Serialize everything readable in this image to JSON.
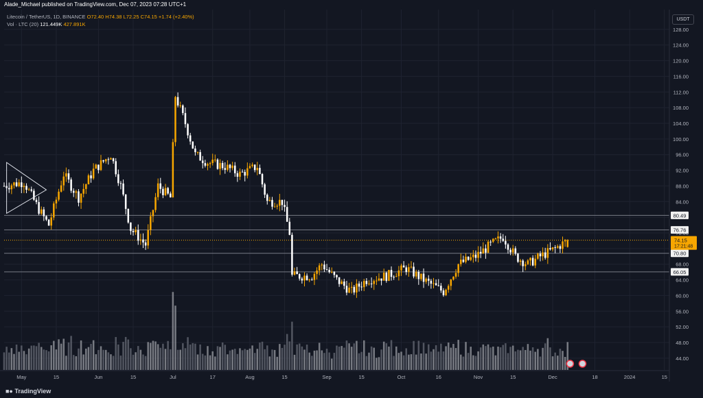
{
  "header": {
    "publish_line": "Alade_Michael published on TradingView.com, Dec 07, 2023 07:28 UTC+1",
    "symbol_line": "Litecoin / TetherUS, 1D, BINANCE",
    "o_label": "O72.40",
    "h_label": "H74.38",
    "l_label": "L72.25",
    "c_label": "C74.15",
    "change_label": "+1.74 (+2.40%)",
    "vol_label": "Vol · LTC (20)",
    "vol_val_1": "121.449K",
    "vol_val_2": "427.891K"
  },
  "currency_button": "USDT",
  "footer": {
    "logo_text": "TradingView"
  },
  "colors": {
    "background": "#131722",
    "up": "#f7a600",
    "down": "#ffffff",
    "grid": "#1f2330",
    "axis_text": "#b2b5be",
    "line": "#787b86",
    "price_badge": "#f7a600"
  },
  "chart_data": {
    "type": "candlestick",
    "title": "Litecoin / TetherUS, 1D, BINANCE",
    "ylim": [
      41,
      128.5
    ],
    "y_ticks": [
      44,
      48,
      52,
      56,
      60,
      64,
      68,
      72,
      76,
      80,
      84,
      88,
      92,
      96,
      100,
      104,
      108,
      112,
      116,
      120,
      124,
      128
    ],
    "y_tick_labels": [
      "44.00",
      "48.00",
      "52.00",
      "56.00",
      "60.00",
      "64.00",
      "68.00",
      "72.00",
      "76.00",
      "80.00",
      "84.00",
      "88.00",
      "92.00",
      "96.00",
      "100.00",
      "104.00",
      "108.00",
      "112.00",
      "116.00",
      "120.00",
      "124.00",
      "128.00"
    ],
    "x_range": [
      "2023-04-24",
      "2024-01-17"
    ],
    "x_ticks": [
      {
        "date": "2023-05-01",
        "label": "May"
      },
      {
        "date": "2023-05-15",
        "label": "15"
      },
      {
        "date": "2023-06-01",
        "label": "Jun"
      },
      {
        "date": "2023-06-15",
        "label": "15"
      },
      {
        "date": "2023-07-01",
        "label": "Jul"
      },
      {
        "date": "2023-07-17",
        "label": "17"
      },
      {
        "date": "2023-08-01",
        "label": "Aug"
      },
      {
        "date": "2023-08-15",
        "label": "15"
      },
      {
        "date": "2023-09-01",
        "label": "Sep"
      },
      {
        "date": "2023-09-15",
        "label": "15"
      },
      {
        "date": "2023-10-01",
        "label": "Oct"
      },
      {
        "date": "2023-10-16",
        "label": "16"
      },
      {
        "date": "2023-11-01",
        "label": "Nov"
      },
      {
        "date": "2023-11-15",
        "label": "15"
      },
      {
        "date": "2023-12-01",
        "label": "Dec"
      },
      {
        "date": "2023-12-18",
        "label": "18"
      },
      {
        "date": "2024-01-01",
        "label": "2024"
      },
      {
        "date": "2024-01-15",
        "label": "15"
      }
    ],
    "levels": [
      {
        "value": 80.49,
        "label": "80.49"
      },
      {
        "value": 76.76,
        "label": "76.76"
      },
      {
        "value": 70.8,
        "label": "70.80"
      },
      {
        "value": 66.05,
        "label": "66.05"
      }
    ],
    "last_price": {
      "value": 74.15,
      "label": "74.15",
      "countdown": "17:21:48"
    },
    "close_anchors": [
      {
        "date": "2023-04-24",
        "close": 88
      },
      {
        "date": "2023-05-02",
        "close": 89
      },
      {
        "date": "2023-05-08",
        "close": 82
      },
      {
        "date": "2023-05-12",
        "close": 78
      },
      {
        "date": "2023-05-18",
        "close": 91
      },
      {
        "date": "2023-05-24",
        "close": 85
      },
      {
        "date": "2023-05-30",
        "close": 92
      },
      {
        "date": "2023-06-06",
        "close": 96
      },
      {
        "date": "2023-06-10",
        "close": 88
      },
      {
        "date": "2023-06-14",
        "close": 77
      },
      {
        "date": "2023-06-20",
        "close": 73
      },
      {
        "date": "2023-06-25",
        "close": 88
      },
      {
        "date": "2023-06-30",
        "close": 85
      },
      {
        "date": "2023-07-02",
        "close": 111
      },
      {
        "date": "2023-07-06",
        "close": 104
      },
      {
        "date": "2023-07-10",
        "close": 96
      },
      {
        "date": "2023-07-15",
        "close": 94
      },
      {
        "date": "2023-07-22",
        "close": 93
      },
      {
        "date": "2023-07-28",
        "close": 91
      },
      {
        "date": "2023-08-04",
        "close": 93
      },
      {
        "date": "2023-08-08",
        "close": 84
      },
      {
        "date": "2023-08-14",
        "close": 84
      },
      {
        "date": "2023-08-17",
        "close": 76
      },
      {
        "date": "2023-08-18",
        "close": 65
      },
      {
        "date": "2023-08-26",
        "close": 65
      },
      {
        "date": "2023-08-30",
        "close": 68
      },
      {
        "date": "2023-09-05",
        "close": 64
      },
      {
        "date": "2023-09-11",
        "close": 61
      },
      {
        "date": "2023-09-17",
        "close": 64
      },
      {
        "date": "2023-09-25",
        "close": 65
      },
      {
        "date": "2023-10-03",
        "close": 67
      },
      {
        "date": "2023-10-10",
        "close": 64
      },
      {
        "date": "2023-10-18",
        "close": 61
      },
      {
        "date": "2023-10-24",
        "close": 68
      },
      {
        "date": "2023-10-31",
        "close": 70
      },
      {
        "date": "2023-11-06",
        "close": 73
      },
      {
        "date": "2023-11-11",
        "close": 75
      },
      {
        "date": "2023-11-16",
        "close": 70
      },
      {
        "date": "2023-11-21",
        "close": 68
      },
      {
        "date": "2023-11-26",
        "close": 70
      },
      {
        "date": "2023-12-02",
        "close": 72
      },
      {
        "date": "2023-12-07",
        "close": 74.15
      }
    ],
    "volume": {
      "ylim": [
        0,
        160
      ],
      "note": "Vol · LTC (20)"
    }
  }
}
